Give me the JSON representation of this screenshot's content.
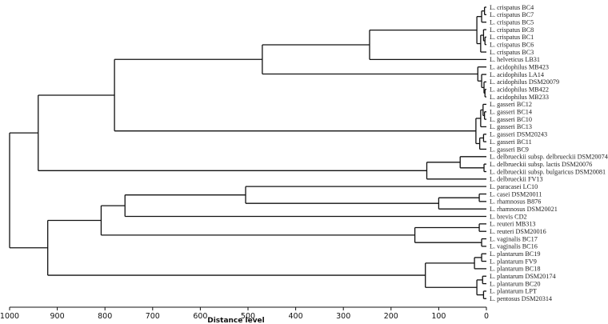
{
  "axis": {
    "label": "Distance level",
    "ticks": [
      1000,
      900,
      800,
      700,
      600,
      500,
      400,
      300,
      200,
      100,
      0
    ]
  },
  "leaves": [
    "L. crispatus BC4",
    "L. crispatus BC7",
    "L. crispatus BC5",
    "L. crispatus BC8",
    "L. crispatus BC1",
    "L. crispatus BC6",
    "L. crispatus BC3",
    "L. helveticus LB31",
    "L. acidophilus MB423",
    "L. acidophilus LA14",
    "L. acidophilus DSM20079",
    "L. acidophilus MB422",
    "L. acidophilus MB233",
    "L. gasseri BC12",
    "L. gasseri BC14",
    "L. gasseri BC10",
    "L. gasseri BC13",
    "L. gasseri DSM20243",
    "L. gasseri BC11",
    "L. gasseri BC9",
    "L. delbrueckii subsp. delbrueckii DSM20074",
    "L. delbrueckii subsp. lactis DSM20076",
    "L. delbrueckii subsp. bulgaricus DSM20081",
    "L. delbrueckii FV13",
    "L. paracasei LC10",
    "L. casei DSM20011",
    "L. rhamnosus B876",
    "L. rhamnosus DSM20021",
    "L. brevis CD2",
    "L. reuteri MB313",
    "L. reuteri DSM20016",
    "L. vaginalis BC17",
    "L. vaginalis BC16",
    "L. plantarum BC19",
    "L. plantarum FV9",
    "L. plantarum BC18",
    "L. plantarum DSM20174",
    "L. plantarum BC20",
    "L. plantarum LPT",
    "L. pentosus DSM20314"
  ],
  "tree": {
    "h": 1000,
    "c": [
      {
        "h": 940,
        "c": [
          {
            "h": 780,
            "c": [
              {
                "h": 470,
                "c": [
                  {
                    "h": 245,
                    "c": [
                      {
                        "h": 20,
                        "c": [
                          {
                            "h": 10,
                            "c": [
                              {
                                "h": 4,
                                "c": [
                                  0,
                                  1
                                ]
                              },
                              2
                            ]
                          },
                          {
                            "h": 12,
                            "c": [
                              {
                                "h": 6,
                                "c": [
                                  3,
                                  {
                                    "h": 3,
                                    "c": [
                                      4,
                                      5
                                    ]
                                  }
                                ]
                              },
                              6
                            ]
                          }
                        ]
                      },
                      7
                    ]
                  },
                  {
                    "h": 18,
                    "c": [
                      8,
                      {
                        "h": 10,
                        "c": [
                          9,
                          {
                            "h": 5,
                            "c": [
                              10,
                              {
                                "h": 3,
                                "c": [
                                  11,
                                  12
                                ]
                              }
                            ]
                          }
                        ]
                      }
                    ]
                  }
                ]
              },
              {
                "h": 22,
                "c": [
                  {
                    "h": 12,
                    "c": [
                      {
                        "h": 7,
                        "c": [
                          13,
                          {
                            "h": 4,
                            "c": [
                              14,
                              15
                            ]
                          }
                        ]
                      },
                      16
                    ]
                  },
                  {
                    "h": 14,
                    "c": [
                      {
                        "h": 6,
                        "c": [
                          17,
                          18
                        ]
                      },
                      19
                    ]
                  }
                ]
              }
            ]
          },
          {
            "h": 125,
            "c": [
              {
                "h": 55,
                "c": [
                  20,
                  {
                    "h": 5,
                    "c": [
                      21,
                      22
                    ]
                  }
                ]
              },
              23
            ]
          }
        ]
      },
      {
        "h": 920,
        "c": [
          {
            "h": 808,
            "c": [
              {
                "h": 758,
                "c": [
                  {
                    "h": 505,
                    "c": [
                      24,
                      {
                        "h": 100,
                        "c": [
                          {
                            "h": 15,
                            "c": [
                              25,
                              26
                            ]
                          },
                          27
                        ]
                      }
                    ]
                  },
                  28
                ]
              },
              {
                "h": 150,
                "c": [
                  {
                    "h": 15,
                    "c": [
                      29,
                      30
                    ]
                  },
                  {
                    "h": 10,
                    "c": [
                      31,
                      32
                    ]
                  }
                ]
              }
            ]
          },
          {
            "h": 128,
            "c": [
              {
                "h": 25,
                "c": [
                  {
                    "h": 10,
                    "c": [
                      33,
                      34
                    ]
                  },
                  35
                ]
              },
              {
                "h": 20,
                "c": [
                  {
                    "h": 8,
                    "c": [
                      36,
                      37
                    ]
                  },
                  {
                    "h": 6,
                    "c": [
                      38,
                      39
                    ]
                  }
                ]
              }
            ]
          }
        ]
      }
    ]
  }
}
